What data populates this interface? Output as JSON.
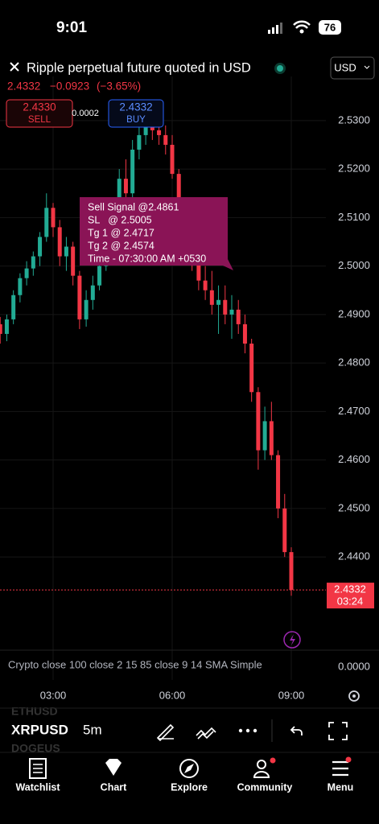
{
  "status_bar": {
    "time": "9:01",
    "battery": "76"
  },
  "header": {
    "title": "Ripple perpetual future quoted in USD",
    "currency": "USD",
    "price": "2.4332",
    "change": "−0.0923",
    "change_pct": "(−3.65%)",
    "sell_price": "2.4330",
    "sell_label": "SELL",
    "spread": "0.0002",
    "buy_price": "2.4332",
    "buy_label": "BUY"
  },
  "chart_data": {
    "type": "candlestick",
    "x": [
      "01:40",
      "01:50",
      "02:00",
      "02:10",
      "02:20",
      "02:30",
      "02:40",
      "02:50",
      "03:00",
      "03:10",
      "03:20",
      "03:30",
      "03:40",
      "03:50",
      "04:00",
      "04:10",
      "04:20",
      "04:30",
      "04:40",
      "04:50",
      "05:00",
      "05:10",
      "05:20",
      "05:30",
      "05:40",
      "05:50",
      "06:00",
      "06:10",
      "06:20",
      "06:30",
      "06:40",
      "06:50",
      "07:00",
      "07:10",
      "07:20",
      "07:30",
      "07:40",
      "07:50",
      "08:00",
      "08:10",
      "08:20",
      "08:30",
      "08:40",
      "08:50",
      "09:00"
    ],
    "open": [
      2.488,
      2.486,
      2.489,
      2.494,
      2.4975,
      2.4995,
      2.502,
      2.506,
      2.512,
      2.508,
      2.502,
      2.504,
      2.498,
      2.489,
      2.493,
      2.496,
      2.5,
      2.505,
      2.511,
      2.518,
      2.515,
      2.524,
      2.527,
      2.529,
      2.528,
      2.527,
      2.525,
      2.519,
      2.511,
      2.506,
      2.501,
      2.497,
      2.495,
      2.492,
      2.493,
      2.49,
      2.491,
      2.488,
      2.484,
      2.474,
      2.462,
      2.468,
      2.461,
      2.45,
      2.441
    ],
    "high": [
      2.4895,
      2.49,
      2.495,
      2.4985,
      2.501,
      2.503,
      2.507,
      2.515,
      2.513,
      2.5095,
      2.506,
      2.505,
      2.499,
      2.495,
      2.498,
      2.502,
      2.507,
      2.513,
      2.52,
      2.522,
      2.526,
      2.529,
      2.5315,
      2.531,
      2.5305,
      2.529,
      2.527,
      2.52,
      2.513,
      2.508,
      2.503,
      2.5,
      2.499,
      2.496,
      2.496,
      2.494,
      2.493,
      2.49,
      2.485,
      2.475,
      2.471,
      2.472,
      2.462,
      2.453,
      2.442
    ],
    "low": [
      2.484,
      2.4845,
      2.488,
      2.4925,
      2.496,
      2.498,
      2.5,
      2.505,
      2.506,
      2.5,
      2.499,
      2.496,
      2.487,
      2.4875,
      2.491,
      2.495,
      2.499,
      2.504,
      2.51,
      2.512,
      2.514,
      2.522,
      2.525,
      2.526,
      2.525,
      2.523,
      2.518,
      2.51,
      2.504,
      2.499,
      2.495,
      2.493,
      2.49,
      2.486,
      2.488,
      2.485,
      2.486,
      2.482,
      2.472,
      2.458,
      2.46,
      2.46,
      2.448,
      2.44,
      2.432
    ],
    "close": [
      2.486,
      2.489,
      2.494,
      2.4975,
      2.4995,
      2.502,
      2.506,
      2.512,
      2.508,
      2.502,
      2.504,
      2.498,
      2.489,
      2.493,
      2.496,
      2.5,
      2.505,
      2.511,
      2.518,
      2.515,
      2.524,
      2.527,
      2.529,
      2.528,
      2.527,
      2.525,
      2.519,
      2.511,
      2.506,
      2.501,
      2.497,
      2.495,
      2.492,
      2.493,
      2.49,
      2.491,
      2.488,
      2.484,
      2.474,
      2.462,
      2.468,
      2.461,
      2.45,
      2.441,
      2.4332
    ],
    "up_color": "#22ab94",
    "down_color": "#f23645",
    "ylim": [
      2.4221,
      2.5391
    ],
    "yticks": [
      {
        "value": 2.53,
        "label": "2.5300"
      },
      {
        "value": 2.52,
        "label": "2.5200"
      },
      {
        "value": 2.51,
        "label": "2.5100"
      },
      {
        "value": 2.5,
        "label": "2.5000"
      },
      {
        "value": 2.49,
        "label": "2.4900"
      },
      {
        "value": 2.48,
        "label": "2.4800"
      },
      {
        "value": 2.47,
        "label": "2.4700"
      },
      {
        "value": 2.46,
        "label": "2.4600"
      },
      {
        "value": 2.45,
        "label": "2.4500"
      },
      {
        "value": 2.44,
        "label": "2.4400"
      }
    ],
    "xticks": [
      "03:00",
      "06:00",
      "09:00"
    ],
    "grid": true,
    "last_price": 2.4332,
    "countdown": "03:24",
    "annotation": [
      "Sell Signal @2.4861",
      "SL   @ 2.5005",
      "Tg 1 @ 2.4717",
      "Tg 2 @ 2.4574",
      "Time - 07:30:00 AM +0530"
    ]
  },
  "indicator": {
    "label": "Crypto close 100 close 2 15 85 close 9 14 SMA Simple",
    "tick": {
      "value": 0,
      "label": "0.0000"
    }
  },
  "watchlist_ghost": [
    "ETHUSD",
    "DOGEUS"
  ],
  "toolbar": {
    "symbol": "XRPUSD",
    "interval": "5m"
  },
  "nav": [
    "Watchlist",
    "Chart",
    "Explore",
    "Community",
    "Menu"
  ]
}
